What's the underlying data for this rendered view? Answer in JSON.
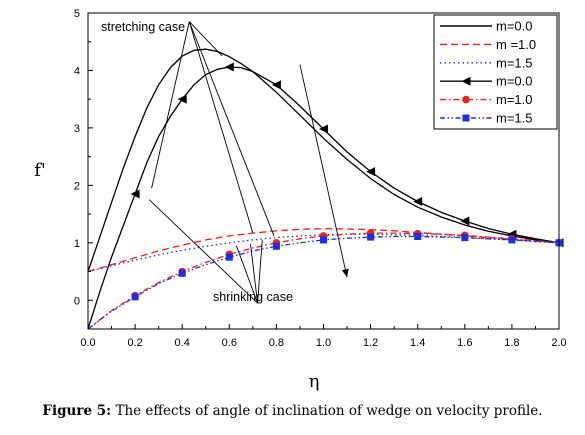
{
  "caption": {
    "label": "Figure 5:",
    "text": " The effects of angle of inclination of wedge on velocity profile."
  },
  "colors": {
    "black": "#000000",
    "red": "#e8221f",
    "blue": "#1f2fe0"
  },
  "chart_data": {
    "type": "line",
    "xlabel": "η",
    "ylabel": "f'",
    "xlim": [
      0.0,
      2.0
    ],
    "ylim": [
      -0.5,
      5
    ],
    "xticks": [
      0.0,
      0.2,
      0.4,
      0.6,
      0.8,
      1.0,
      1.2,
      1.4,
      1.6,
      1.8,
      2.0
    ],
    "xtick_labels": [
      "0.0",
      "0.2",
      "0.4",
      "0.6",
      "0.8",
      "1.0",
      "1.2",
      "1.4",
      "1.6",
      "1.8",
      "2.0"
    ],
    "yticks": [
      0,
      1,
      2,
      3,
      4,
      5
    ],
    "ytick_labels": [
      "0",
      "1",
      "2",
      "3",
      "4",
      "5"
    ],
    "legend_position": "top-right",
    "annotations": [
      "stretching case",
      "shrinking case"
    ],
    "series": [
      {
        "name": "m=0.0",
        "case": "stretching",
        "color": "#000000",
        "style": "solid",
        "marker": "none",
        "x": [
          0.0,
          0.05,
          0.1,
          0.15,
          0.2,
          0.25,
          0.3,
          0.35,
          0.4,
          0.45,
          0.5,
          0.55,
          0.6,
          0.65,
          0.7,
          0.8,
          0.9,
          1.0,
          1.1,
          1.2,
          1.3,
          1.4,
          1.5,
          1.6,
          1.7,
          1.8,
          1.9,
          2.0
        ],
        "y": [
          0.5,
          1.1,
          1.7,
          2.3,
          2.85,
          3.35,
          3.75,
          4.05,
          4.25,
          4.35,
          4.37,
          4.33,
          4.24,
          4.12,
          3.98,
          3.62,
          3.22,
          2.82,
          2.45,
          2.12,
          1.84,
          1.62,
          1.45,
          1.31,
          1.2,
          1.12,
          1.05,
          1.0
        ]
      },
      {
        "name": "m =1.0",
        "case": "stretching",
        "color": "#e8221f",
        "style": "dashed",
        "marker": "none",
        "x": [
          0.0,
          0.1,
          0.2,
          0.3,
          0.4,
          0.5,
          0.6,
          0.7,
          0.8,
          0.9,
          1.0,
          1.1,
          1.2,
          1.3,
          1.4,
          1.5,
          1.6,
          1.7,
          1.8,
          1.9,
          2.0
        ],
        "y": [
          0.5,
          0.62,
          0.74,
          0.86,
          0.96,
          1.05,
          1.12,
          1.17,
          1.21,
          1.235,
          1.245,
          1.24,
          1.23,
          1.21,
          1.18,
          1.15,
          1.12,
          1.09,
          1.06,
          1.03,
          1.0
        ]
      },
      {
        "name": "m=1.5",
        "case": "stretching",
        "color": "#1f2fe0",
        "style": "dotted",
        "marker": "none",
        "x": [
          0.0,
          0.1,
          0.2,
          0.3,
          0.4,
          0.5,
          0.6,
          0.7,
          0.8,
          0.9,
          1.0,
          1.1,
          1.2,
          1.3,
          1.4,
          1.5,
          1.6,
          1.7,
          1.8,
          1.9,
          2.0
        ],
        "y": [
          0.5,
          0.6,
          0.7,
          0.79,
          0.87,
          0.94,
          1.0,
          1.05,
          1.09,
          1.12,
          1.14,
          1.15,
          1.15,
          1.14,
          1.13,
          1.11,
          1.09,
          1.07,
          1.05,
          1.02,
          1.0
        ]
      },
      {
        "name": "m=0.0",
        "case": "shrinking",
        "color": "#000000",
        "style": "solid",
        "marker": "triangle-left",
        "x": [
          0.0,
          0.05,
          0.1,
          0.15,
          0.2,
          0.25,
          0.3,
          0.35,
          0.4,
          0.45,
          0.5,
          0.55,
          0.6,
          0.65,
          0.7,
          0.8,
          0.9,
          1.0,
          1.1,
          1.2,
          1.3,
          1.4,
          1.5,
          1.6,
          1.7,
          1.8,
          1.9,
          2.0
        ],
        "y": [
          -0.5,
          0.15,
          0.75,
          1.3,
          1.85,
          2.4,
          2.85,
          3.2,
          3.5,
          3.75,
          3.93,
          4.02,
          4.06,
          4.05,
          3.98,
          3.75,
          3.38,
          2.98,
          2.58,
          2.24,
          1.95,
          1.72,
          1.53,
          1.38,
          1.25,
          1.15,
          1.07,
          1.0
        ]
      },
      {
        "name": "m=1.0",
        "case": "shrinking",
        "color": "#e8221f",
        "style": "dashdot",
        "marker": "circle",
        "x": [
          0.0,
          0.1,
          0.2,
          0.3,
          0.4,
          0.5,
          0.6,
          0.7,
          0.8,
          0.9,
          1.0,
          1.1,
          1.2,
          1.3,
          1.4,
          1.5,
          1.6,
          1.7,
          1.8,
          1.9,
          2.0
        ],
        "y": [
          -0.5,
          -0.18,
          0.08,
          0.31,
          0.5,
          0.66,
          0.8,
          0.91,
          1.0,
          1.07,
          1.12,
          1.15,
          1.17,
          1.17,
          1.16,
          1.15,
          1.13,
          1.1,
          1.07,
          1.04,
          1.0
        ]
      },
      {
        "name": "m=1.5",
        "case": "shrinking",
        "color": "#1f2fe0",
        "style": "dashdotdot",
        "marker": "square",
        "x": [
          0.0,
          0.1,
          0.2,
          0.3,
          0.4,
          0.5,
          0.6,
          0.7,
          0.8,
          0.9,
          1.0,
          1.1,
          1.2,
          1.3,
          1.4,
          1.5,
          1.6,
          1.7,
          1.8,
          1.9,
          2.0
        ],
        "y": [
          -0.5,
          -0.19,
          0.06,
          0.29,
          0.47,
          0.62,
          0.75,
          0.86,
          0.94,
          1.0,
          1.05,
          1.08,
          1.1,
          1.11,
          1.11,
          1.1,
          1.09,
          1.07,
          1.05,
          1.03,
          1.0
        ]
      }
    ]
  }
}
